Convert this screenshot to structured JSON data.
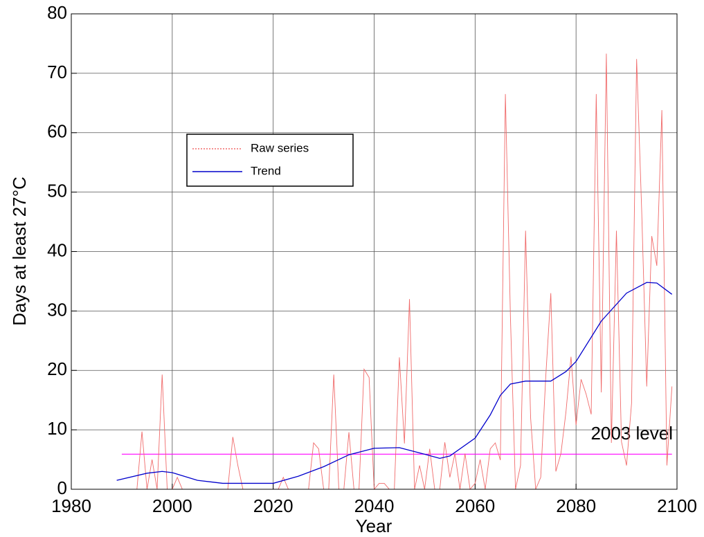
{
  "chart_data": {
    "type": "line",
    "xlabel": "Year",
    "ylabel": "Days at least 27°C",
    "xlim": [
      1980,
      2100
    ],
    "ylim": [
      0,
      80
    ],
    "xticks": [
      1980,
      2000,
      2020,
      2040,
      2060,
      2080,
      2100
    ],
    "yticks": [
      0,
      10,
      20,
      30,
      40,
      50,
      60,
      70,
      80
    ],
    "grid": true,
    "legend": "upper-left",
    "series": [
      {
        "name": "Raw series",
        "color": "#f06a6a",
        "legend_style": "dotted",
        "x": [
          1990,
          1991,
          1992,
          1993,
          1994,
          1995,
          1996,
          1997,
          1998,
          1999,
          2000,
          2001,
          2002,
          2003,
          2004,
          2005,
          2006,
          2007,
          2008,
          2009,
          2010,
          2011,
          2012,
          2013,
          2014,
          2015,
          2016,
          2017,
          2018,
          2019,
          2020,
          2021,
          2022,
          2023,
          2024,
          2025,
          2026,
          2027,
          2028,
          2029,
          2030,
          2031,
          2032,
          2033,
          2034,
          2035,
          2036,
          2037,
          2038,
          2039,
          2040,
          2041,
          2042,
          2043,
          2044,
          2045,
          2046,
          2047,
          2048,
          2049,
          2050,
          2051,
          2052,
          2053,
          2054,
          2055,
          2056,
          2057,
          2058,
          2059,
          2060,
          2061,
          2062,
          2063,
          2064,
          2065,
          2066,
          2067,
          2068,
          2069,
          2070,
          2071,
          2072,
          2073,
          2074,
          2075,
          2076,
          2077,
          2078,
          2079,
          2080,
          2081,
          2082,
          2083,
          2084,
          2085,
          2086,
          2087,
          2088,
          2089,
          2090,
          2091,
          2092,
          2093,
          2094,
          2095,
          2096,
          2097,
          2098,
          2099
        ],
        "values": [
          0,
          0,
          0,
          0,
          9.7,
          0,
          5,
          0,
          19.3,
          0,
          0,
          2,
          0,
          0,
          0,
          0,
          0,
          0,
          0,
          0,
          0,
          0,
          8.8,
          4,
          0,
          0,
          0,
          0,
          0,
          0,
          0,
          0,
          2,
          0,
          0,
          0,
          0,
          0,
          7.8,
          6.8,
          0,
          0,
          19.3,
          0,
          0,
          9.6,
          0,
          0,
          20.2,
          18.8,
          0,
          1,
          1,
          0,
          0,
          22.2,
          7.7,
          32,
          0,
          4,
          0,
          6.8,
          0,
          0,
          7.9,
          2,
          6,
          0,
          6,
          0,
          1,
          5,
          0,
          6.8,
          7.8,
          4.9,
          66.5,
          29,
          0,
          4,
          43.5,
          12,
          0,
          2,
          19,
          33,
          3,
          6,
          13,
          22.3,
          10.8,
          18.5,
          16,
          12.6,
          66.5,
          16.3,
          73.3,
          7.8,
          43.5,
          8,
          4,
          14.5,
          72.4,
          47,
          17.3,
          42.6,
          37.6,
          63.8,
          4,
          17.3
        ]
      },
      {
        "name": "Trend",
        "color": "#0000cc",
        "legend_style": "solid",
        "x": [
          1989,
          1995,
          1998,
          2000,
          2005,
          2008,
          2010,
          2020,
          2025,
          2030,
          2035,
          2040,
          2045,
          2050,
          2053,
          2055,
          2060,
          2063,
          2065,
          2067,
          2070,
          2075,
          2078,
          2080,
          2085,
          2090,
          2094,
          2096,
          2099
        ],
        "values": [
          1.5,
          2.7,
          3.0,
          2.8,
          1.5,
          1.2,
          1.0,
          1.0,
          2.2,
          3.8,
          5.8,
          6.9,
          7.0,
          5.9,
          5.2,
          5.6,
          8.6,
          12.5,
          15.8,
          17.7,
          18.2,
          18.2,
          19.8,
          21.5,
          28.3,
          33.0,
          34.8,
          34.7,
          32.8
        ]
      }
    ],
    "reference_line": {
      "label": "2003 level",
      "value": 5.9,
      "color": "#ff00ff",
      "xrange": [
        1990,
        2099
      ]
    }
  }
}
